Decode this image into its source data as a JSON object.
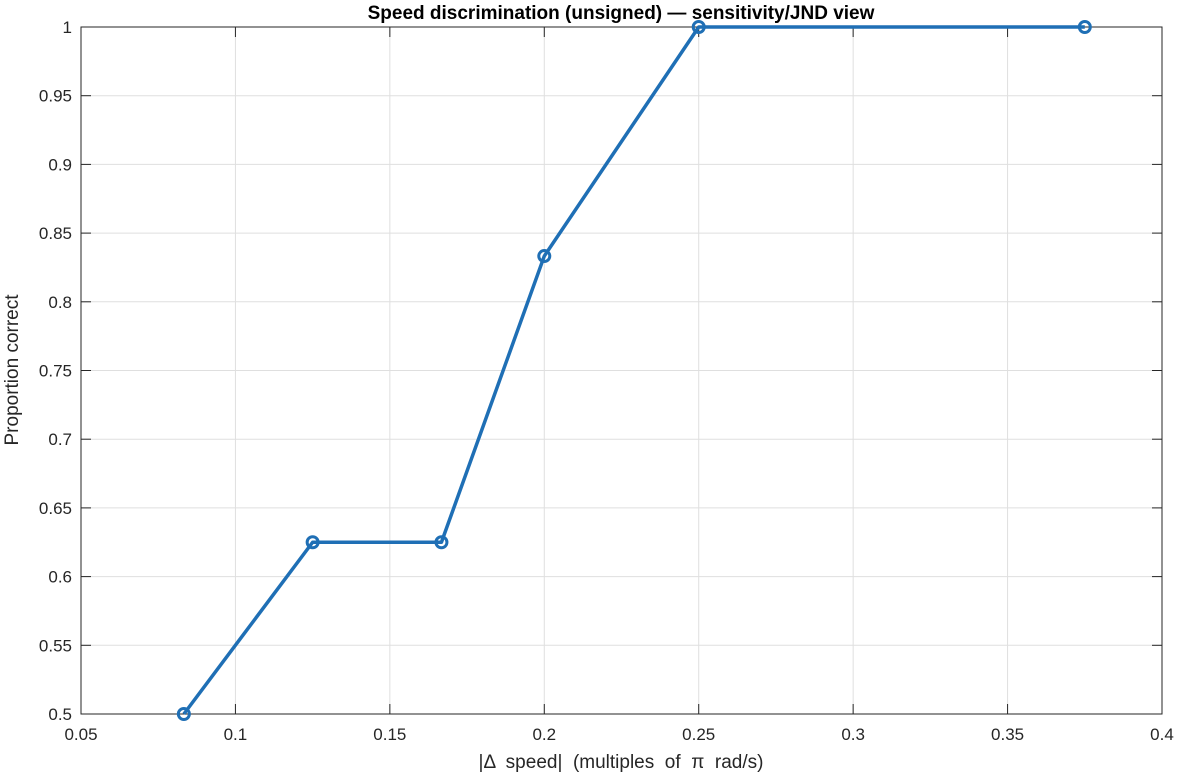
{
  "chart_data": {
    "type": "line",
    "title": "Speed discrimination (unsigned) — sensitivity/JND view",
    "xlabel": "|Δ  speed|  (multiples  of  π  rad/s)",
    "ylabel": "Proportion correct",
    "xlim": [
      0.05,
      0.4
    ],
    "ylim": [
      0.5,
      1.0
    ],
    "xticks": [
      0.05,
      0.1,
      0.15,
      0.2,
      0.25,
      0.3,
      0.35,
      0.4
    ],
    "xtick_labels": [
      "0.05",
      "0.1",
      "0.15",
      "0.2",
      "0.25",
      "0.3",
      "0.35",
      "0.4"
    ],
    "yticks": [
      0.5,
      0.55,
      0.6,
      0.65,
      0.7,
      0.75,
      0.8,
      0.85,
      0.9,
      0.95,
      1.0
    ],
    "ytick_labels": [
      "0.5",
      "0.55",
      "0.6",
      "0.65",
      "0.7",
      "0.75",
      "0.8",
      "0.85",
      "0.9",
      "0.95",
      "1"
    ],
    "grid": true,
    "marker": "circle",
    "color": "#1f6fb5",
    "series": [
      {
        "x": [
          0.0833,
          0.125,
          0.1667,
          0.2,
          0.25,
          0.375
        ],
        "y": [
          0.5,
          0.625,
          0.625,
          0.8333,
          1.0,
          1.0
        ]
      }
    ]
  }
}
